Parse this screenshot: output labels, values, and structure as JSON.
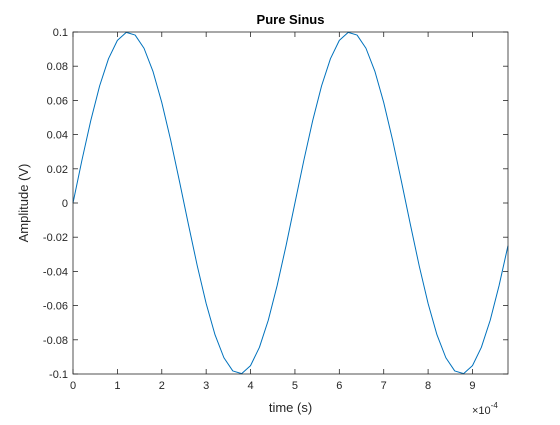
{
  "chart_data": {
    "type": "line",
    "title": "Pure Sinus",
    "xlabel": "time (s)",
    "ylabel": "Amplitude (V)",
    "x_exponent_label": "×10",
    "x_exponent_power": "-4",
    "xlim": [
      0,
      0.00098
    ],
    "ylim": [
      -0.1,
      0.1
    ],
    "grid": false,
    "x_ticks": [
      0,
      0.0001,
      0.0002,
      0.0003,
      0.0004,
      0.0005,
      0.0006,
      0.0007,
      0.0008,
      0.0009
    ],
    "x_tick_labels": [
      "0",
      "1",
      "2",
      "3",
      "4",
      "5",
      "6",
      "7",
      "8",
      "9"
    ],
    "y_ticks": [
      0.1,
      0.08,
      0.06,
      0.04,
      0.02,
      0,
      -0.02,
      -0.04,
      -0.06,
      -0.08,
      -0.1
    ],
    "y_tick_labels": [
      "0.1",
      "0.08",
      "0.06",
      "0.04",
      "0.02",
      "0",
      "-0.02",
      "-0.04",
      "-0.06",
      "-0.08",
      "-0.1"
    ],
    "line_color": "#0072BD",
    "series": [
      {
        "x": [
          0,
          2e-05,
          4e-05,
          6e-05,
          8e-05,
          0.0001,
          0.00012,
          0.00014,
          0.00016,
          0.00018,
          0.0002,
          0.00022,
          0.00024,
          0.00026,
          0.00028,
          0.0003,
          0.00032,
          0.00034,
          0.00036,
          0.00038,
          0.0004,
          0.00042,
          0.00044,
          0.00046,
          0.00048,
          0.0005,
          0.00052,
          0.00054,
          0.00056,
          0.00058,
          0.0006,
          0.00062,
          0.00064,
          0.00066,
          0.00068,
          0.0007,
          0.00072,
          0.00074,
          0.00076,
          0.00078,
          0.0008,
          0.00082,
          0.00084,
          0.00086,
          0.00088,
          0.0009,
          0.00092,
          0.00094,
          0.00096,
          0.00098
        ],
        "y": [
          0,
          0.0249,
          0.0482,
          0.0685,
          0.0844,
          0.0951,
          0.0998,
          0.0982,
          0.0905,
          0.0771,
          0.0588,
          0.0368,
          0.0125,
          -0.0125,
          -0.0368,
          -0.0588,
          -0.0771,
          -0.0905,
          -0.0982,
          -0.0998,
          -0.0951,
          -0.0844,
          -0.0685,
          -0.0482,
          -0.0249,
          0,
          0.0249,
          0.0482,
          0.0685,
          0.0844,
          0.0951,
          0.0998,
          0.0982,
          0.0905,
          0.0771,
          0.0588,
          0.0368,
          0.0125,
          -0.0125,
          -0.0368,
          -0.0588,
          -0.0771,
          -0.0905,
          -0.0982,
          -0.0998,
          -0.0951,
          -0.0844,
          -0.0685,
          -0.0482,
          -0.0249
        ]
      }
    ]
  }
}
